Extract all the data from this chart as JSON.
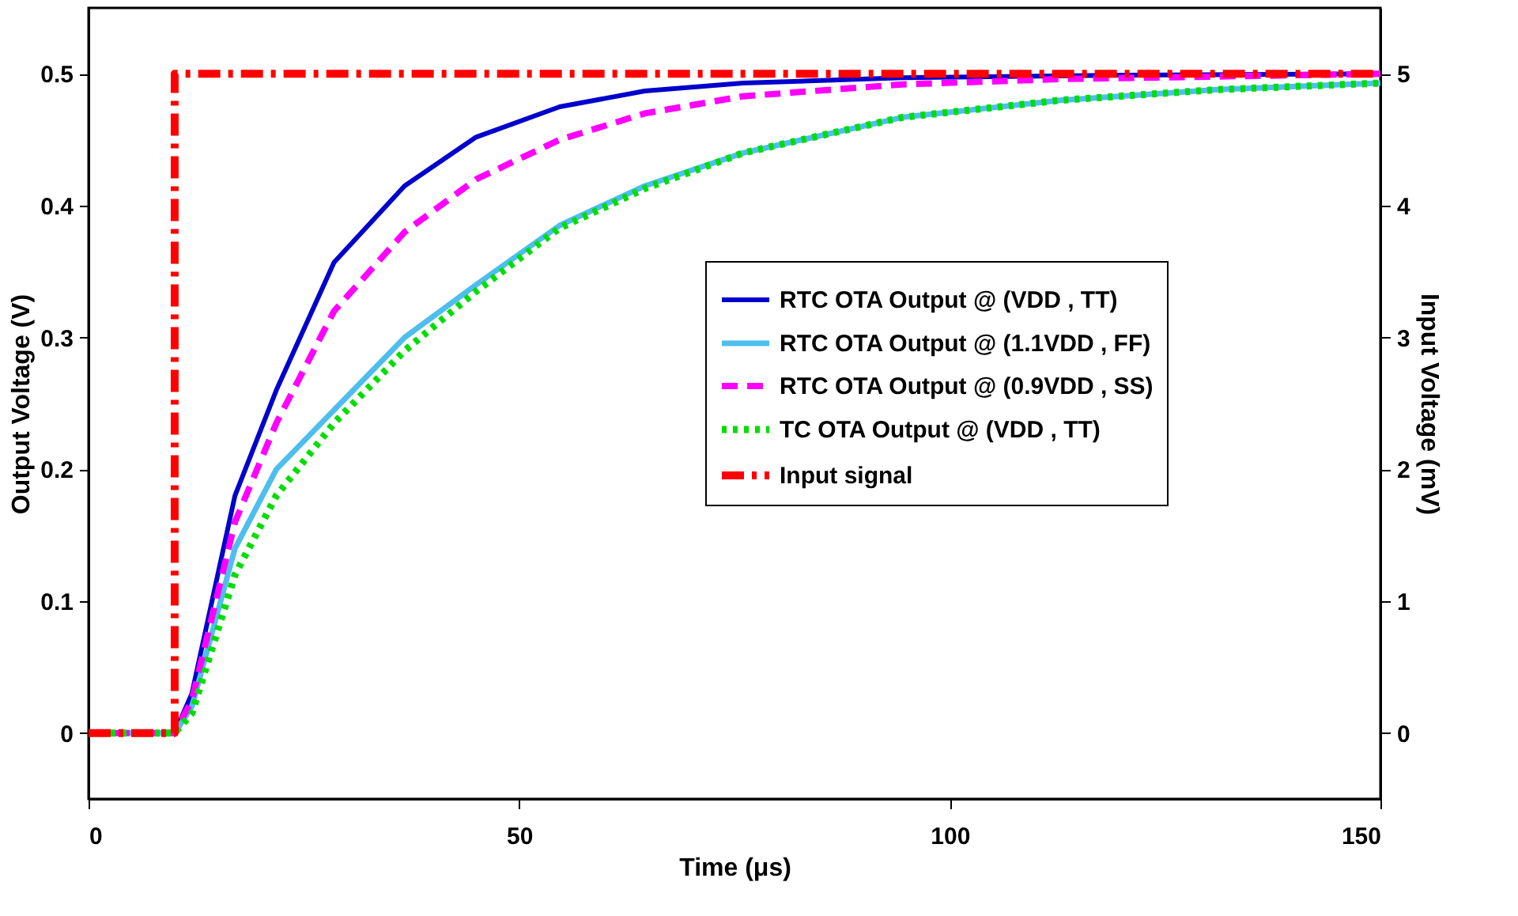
{
  "chart_data": {
    "type": "line",
    "xlabel": "Time (μs)",
    "ylabel": "Output Voltage (V)",
    "y2label": "Input Voltage (mV)",
    "xlim": [
      0,
      150
    ],
    "xticks": [
      0,
      50,
      100,
      150
    ],
    "ylim": [
      -0.05,
      0.55
    ],
    "yticks": [
      0,
      0.1,
      0.2,
      0.3,
      0.4,
      0.5
    ],
    "y2lim": [
      -0.5,
      5.5
    ],
    "y2ticks": [
      0,
      1,
      2,
      3,
      4,
      5
    ],
    "grid": false,
    "legend": "right",
    "marker": "none",
    "series": [
      {
        "name": "RTC OTA Output @ (VDD , TT)",
        "color": "#0000cc",
        "line_style": "solid",
        "x": [
          0,
          10,
          12,
          17,
          21.8,
          28.5,
          36.7,
          45,
          54.7,
          64.6,
          76,
          94.5,
          120,
          150
        ],
        "values": [
          0,
          0,
          0.03,
          0.18,
          0.26,
          0.357,
          0.415,
          0.452,
          0.475,
          0.487,
          0.493,
          0.497,
          0.499,
          0.5
        ]
      },
      {
        "name": "RTC OTA Output @ (1.1VDD , FF)",
        "color": "#4dbeee",
        "line_style": "solid",
        "x": [
          0,
          10,
          12,
          17,
          21.8,
          28.5,
          36.7,
          45,
          54.7,
          64.6,
          76,
          94.5,
          112.9,
          131,
          150
        ],
        "values": [
          0,
          0,
          0.02,
          0.14,
          0.2,
          0.245,
          0.3,
          0.34,
          0.385,
          0.415,
          0.44,
          0.467,
          0.48,
          0.488,
          0.493
        ]
      },
      {
        "name": "RTC OTA Output @ (0.9VDD , SS)",
        "color": "#ff00ff",
        "line_style": "dashed",
        "x": [
          0,
          10,
          12,
          17,
          21.8,
          28.5,
          36.7,
          45,
          54.7,
          64.6,
          76,
          94.5,
          112.9,
          150
        ],
        "values": [
          0,
          0,
          0.025,
          0.16,
          0.235,
          0.32,
          0.38,
          0.42,
          0.45,
          0.47,
          0.483,
          0.492,
          0.496,
          0.5
        ]
      },
      {
        "name": "TC OTA Output @ (VDD , TT)",
        "color": "#00dd00",
        "line_style": "dotted",
        "x": [
          0,
          10,
          12,
          17,
          21.8,
          28.5,
          36.7,
          45,
          54.7,
          64.6,
          76,
          94.5,
          112.9,
          131,
          150
        ],
        "values": [
          0,
          0,
          0.015,
          0.12,
          0.18,
          0.235,
          0.29,
          0.335,
          0.383,
          0.413,
          0.44,
          0.467,
          0.48,
          0.488,
          0.493
        ]
      },
      {
        "name": "Input signal",
        "color": "#ff0000",
        "line_style": "dashdot",
        "axis": "y2",
        "type": "step",
        "x": [
          0,
          10,
          150
        ],
        "values": [
          0,
          5,
          5
        ]
      }
    ]
  }
}
